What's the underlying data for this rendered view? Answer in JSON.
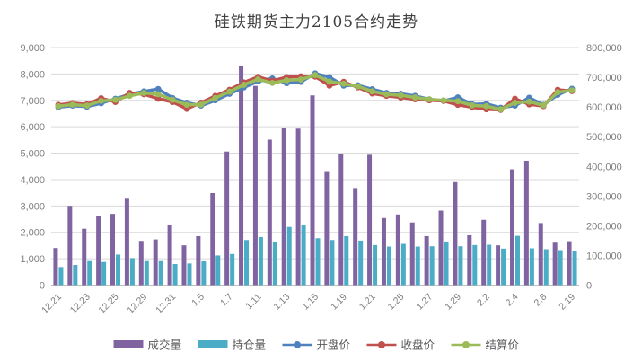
{
  "chart_data": {
    "type": "combo-bar-line",
    "title": "硅铁期货主力2105合约走势",
    "categories": [
      "12.21",
      "12.22",
      "12.23",
      "12.24",
      "12.25",
      "12.28",
      "12.29",
      "12.30",
      "12.31",
      "1.4",
      "1.5",
      "1.6",
      "1.7",
      "1.8",
      "1.11",
      "1.12",
      "1.13",
      "1.14",
      "1.15",
      "1.18",
      "1.19",
      "1.20",
      "1.21",
      "1.22",
      "1.25",
      "1.26",
      "1.27",
      "1.28",
      "1.29",
      "2.1",
      "2.2",
      "2.3",
      "2.4",
      "2.5",
      "2.8",
      "2.9",
      "2.19"
    ],
    "x_tick_labels": [
      "12.21",
      "12.23",
      "12.25",
      "12.29",
      "12.31",
      "1.5",
      "1.7",
      "1.11",
      "1.13",
      "1.15",
      "1.19",
      "1.21",
      "1.25",
      "1.27",
      "1.29",
      "2.2",
      "2.4",
      "2.8",
      "2.19"
    ],
    "x_tick_every": 2,
    "series": [
      {
        "name": "成交量",
        "key": "volume",
        "type": "bar",
        "axis": "right",
        "color": "#8064A2",
        "values": [
          125000,
          267000,
          190000,
          233000,
          240000,
          291000,
          149000,
          154000,
          203000,
          134000,
          165000,
          310000,
          450000,
          737000,
          671000,
          490000,
          530000,
          527000,
          639000,
          384000,
          443000,
          327000,
          439000,
          226000,
          238000,
          211000,
          165000,
          251000,
          347000,
          168000,
          220000,
          134000,
          390000,
          419000,
          209000,
          143000,
          148000
        ]
      },
      {
        "name": "持仓量",
        "key": "open-interest",
        "type": "bar",
        "axis": "right",
        "color": "#4BACC6",
        "values": [
          61000,
          68000,
          81000,
          78000,
          103000,
          91000,
          81000,
          81000,
          71000,
          73000,
          80000,
          100000,
          105000,
          152000,
          162000,
          146000,
          196000,
          201000,
          158000,
          152000,
          165000,
          150000,
          135000,
          130000,
          139000,
          130000,
          131000,
          147000,
          131000,
          135000,
          136000,
          123000,
          166000,
          124000,
          121000,
          118000,
          116000
        ]
      },
      {
        "name": "开盘价",
        "key": "open-price",
        "type": "line",
        "axis": "left",
        "color": "#4F81BD",
        "marker": "circle",
        "values": [
          6740,
          6800,
          6760,
          6890,
          7060,
          7230,
          7340,
          7430,
          7090,
          6910,
          6800,
          7000,
          7250,
          7490,
          7720,
          7830,
          7650,
          7700,
          8020,
          7880,
          7560,
          7570,
          7420,
          7280,
          7250,
          7170,
          7040,
          6980,
          7110,
          6850,
          6870,
          6720,
          6800,
          7100,
          6830,
          7210,
          7440
        ]
      },
      {
        "name": "收盘价",
        "key": "close-price",
        "type": "line",
        "axis": "left",
        "color": "#C0504D",
        "marker": "circle",
        "values": [
          6830,
          6900,
          6850,
          7080,
          6940,
          7280,
          7230,
          7060,
          6940,
          6680,
          6910,
          7170,
          7400,
          7680,
          7890,
          7740,
          7880,
          7910,
          7900,
          7560,
          7700,
          7490,
          7260,
          7170,
          7110,
          7040,
          7000,
          6980,
          6830,
          6740,
          6660,
          6640,
          7060,
          6850,
          6780,
          7400,
          7350
        ]
      },
      {
        "name": "结算价",
        "key": "settlement-price",
        "type": "line",
        "axis": "left",
        "color": "#9BBB59",
        "marker": "circle",
        "values": [
          6780,
          6840,
          6800,
          6980,
          7020,
          7170,
          7280,
          7230,
          7020,
          6830,
          6840,
          7090,
          7330,
          7590,
          7800,
          7660,
          7760,
          7790,
          7960,
          7710,
          7630,
          7530,
          7340,
          7230,
          7190,
          7110,
          7040,
          7000,
          6970,
          6810,
          6780,
          6660,
          6910,
          6950,
          6810,
          7310,
          7380
        ]
      }
    ],
    "left_axis": {
      "min": 0,
      "max": 9000,
      "step": 1000,
      "labels": [
        "0",
        "1,000",
        "2,000",
        "3,000",
        "4,000",
        "5,000",
        "6,000",
        "7,000",
        "8,000",
        "9,000"
      ]
    },
    "right_axis": {
      "min": 0,
      "max": 800000,
      "step": 100000,
      "labels": [
        "0",
        "100,000",
        "200,000",
        "300,000",
        "400,000",
        "500,000",
        "600,000",
        "700,000",
        "800,000"
      ]
    },
    "grid": true,
    "legend_position": "bottom",
    "legend": [
      "成交量",
      "持仓量",
      "开盘价",
      "收盘价",
      "结算价"
    ],
    "colors": {
      "grid": "#D9D9D9",
      "axis_line": "#BFBFBF",
      "axis_text": "#7F7F7F",
      "title_text": "#404040",
      "legend_text": "#595959",
      "background": "#FFFFFF"
    }
  }
}
